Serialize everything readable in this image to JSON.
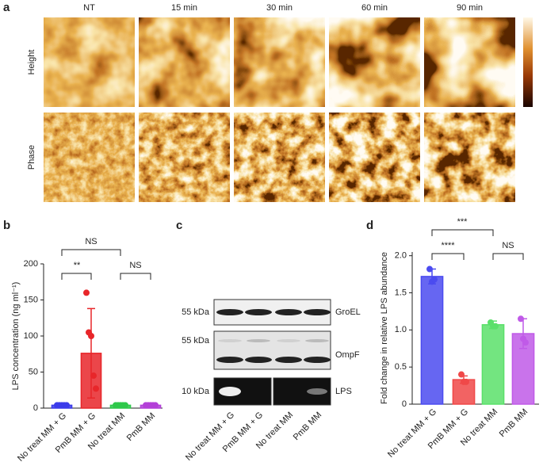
{
  "panel_labels": [
    "a",
    "b",
    "c",
    "d"
  ],
  "panel_a": {
    "columns": [
      "NT",
      "15 min",
      "30 min",
      "60 min",
      "90 min"
    ],
    "rows": [
      "Height",
      "Phase"
    ]
  },
  "panel_c": {
    "blots": [
      {
        "size": "55 kDa",
        "label": "GroEL"
      },
      {
        "size": "55 kDa",
        "label": "OmpF"
      },
      {
        "size": "10 kDa",
        "label": "LPS"
      }
    ],
    "lanes": [
      "No treat MM + G",
      "PmB MM + G",
      "No treat MM",
      "PmB MM"
    ]
  },
  "chart_data": [
    {
      "type": "bar",
      "ylabel": "LPS concentration (ng ml⁻¹)",
      "categories": [
        "No treat MM + G",
        "PmB MM + G",
        "No treat MM",
        "PmB MM"
      ],
      "colors": [
        "#3b3bea",
        "#e8262a",
        "#2ec84a",
        "#b340d8"
      ],
      "values": [
        4,
        76,
        4,
        4
      ],
      "errors": [
        1,
        62,
        1,
        1
      ],
      "points": [
        [
          4,
          4,
          4,
          4,
          4
        ],
        [
          160,
          105,
          100,
          45,
          27
        ],
        [
          4,
          4,
          4,
          4,
          4
        ],
        [
          4,
          4,
          4,
          4,
          4
        ]
      ],
      "ylim": [
        0,
        200
      ],
      "yticks": [
        0,
        50,
        100,
        150,
        200
      ],
      "annotations": [
        "NS",
        "**",
        "NS"
      ]
    },
    {
      "type": "bar",
      "ylabel": "Fold change in relative LPS abundance",
      "categories": [
        "No treat MM + G",
        "PmB MM + G",
        "No treat MM",
        "PmB MM"
      ],
      "colors": [
        "#4b4bf0",
        "#f04848",
        "#5ae06a",
        "#c05ae8"
      ],
      "values": [
        1.72,
        0.33,
        1.07,
        0.95
      ],
      "errors": [
        0.1,
        0.05,
        0.05,
        0.2
      ],
      "points": [
        [
          1.82,
          1.65,
          1.68
        ],
        [
          0.4,
          0.3,
          0.3
        ],
        [
          1.1,
          1.05,
          1.05
        ],
        [
          1.15,
          0.88,
          0.83
        ]
      ],
      "ylim": [
        0,
        2.05
      ],
      "yticks": [
        0,
        0.5,
        {
          "value": 1,
          "label": "1.0"
        },
        1.5,
        {
          "value": 2,
          "label": "2.0"
        }
      ],
      "annotations": [
        "***",
        "****",
        "NS"
      ]
    }
  ]
}
